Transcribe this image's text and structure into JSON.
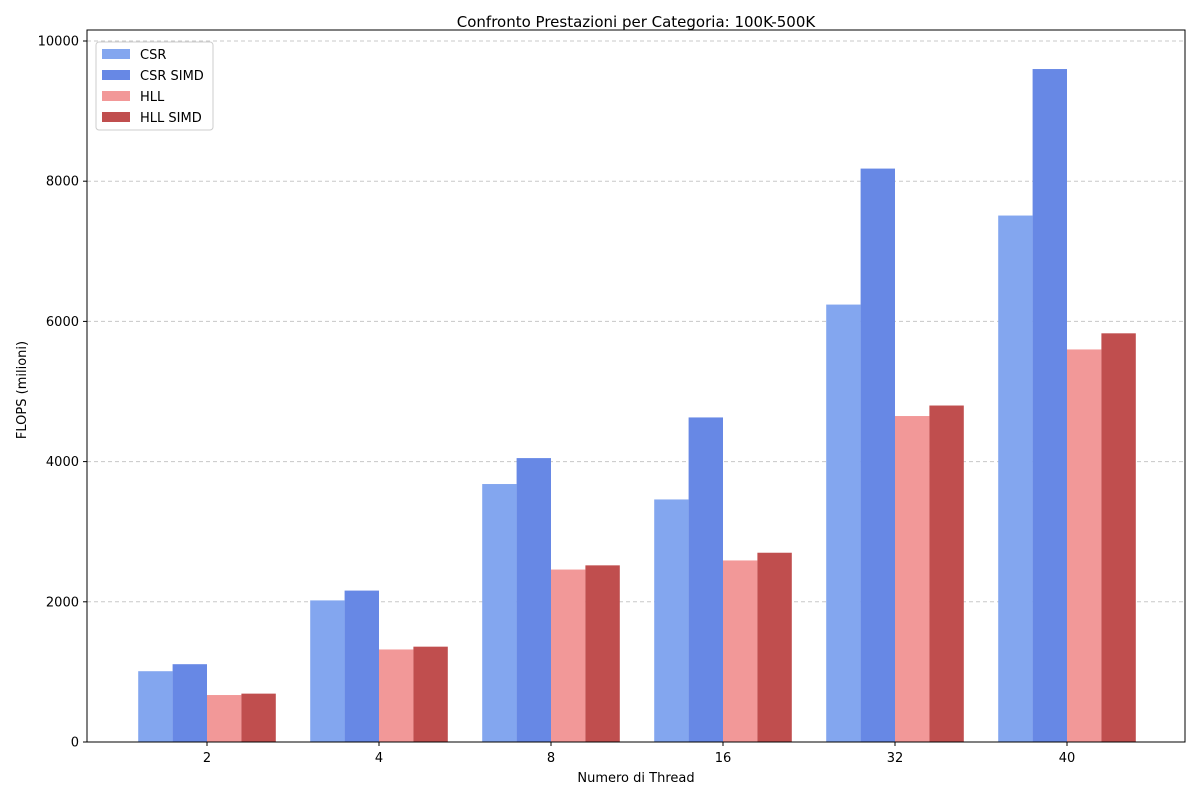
{
  "chart_data": {
    "type": "bar",
    "title": "Confronto Prestazioni per Categoria: 100K-500K",
    "xlabel": "Numero di Thread",
    "ylabel": "FLOPS (milioni)",
    "categories": [
      "2",
      "4",
      "8",
      "16",
      "32",
      "40"
    ],
    "ylim": [
      0,
      10000
    ],
    "yticks": [
      0,
      2000,
      4000,
      6000,
      8000,
      10000
    ],
    "grid": "y-dashed",
    "legend_position": "top-left",
    "series": [
      {
        "name": "CSR",
        "color": "#83a6ef",
        "values": [
          1010,
          2020,
          3680,
          3460,
          6240,
          7510
        ]
      },
      {
        "name": "CSR SIMD",
        "color": "#6788e5",
        "values": [
          1110,
          2160,
          4050,
          4630,
          8180,
          9600
        ]
      },
      {
        "name": "HLL",
        "color": "#f29898",
        "values": [
          670,
          1320,
          2460,
          2590,
          4650,
          5600
        ]
      },
      {
        "name": "HLL SIMD",
        "color": "#c04e4e",
        "values": [
          690,
          1360,
          2520,
          2700,
          4800,
          5830
        ]
      }
    ]
  }
}
